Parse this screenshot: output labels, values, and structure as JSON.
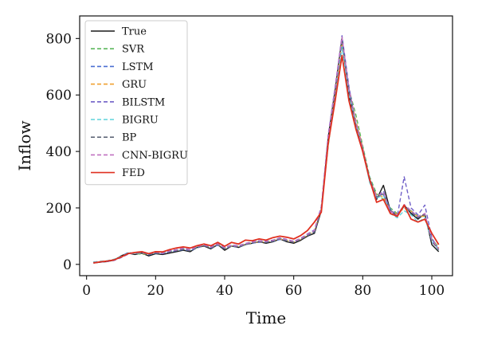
{
  "chart_data": {
    "type": "line",
    "xlabel": "Time",
    "ylabel": "Inflow",
    "xlim": [
      -2,
      106
    ],
    "ylim": [
      -40,
      880
    ],
    "xticks": [
      0,
      20,
      40,
      60,
      80,
      100
    ],
    "yticks": [
      0,
      200,
      400,
      600,
      800
    ],
    "legend_position": "top-left",
    "grid": false,
    "x": [
      2,
      4,
      6,
      8,
      10,
      12,
      14,
      16,
      18,
      20,
      22,
      24,
      26,
      28,
      30,
      32,
      34,
      36,
      38,
      40,
      42,
      44,
      46,
      48,
      50,
      52,
      54,
      56,
      58,
      60,
      62,
      64,
      66,
      68,
      70,
      72,
      74,
      76,
      78,
      80,
      82,
      84,
      86,
      88,
      90,
      92,
      94,
      96,
      98,
      100,
      102
    ],
    "series": [
      {
        "name": "True",
        "color": "#1a1a1a",
        "dash": "solid",
        "values": [
          5,
          8,
          10,
          15,
          30,
          40,
          35,
          40,
          30,
          38,
          35,
          40,
          45,
          50,
          45,
          60,
          65,
          55,
          70,
          50,
          65,
          60,
          70,
          75,
          80,
          75,
          80,
          90,
          80,
          75,
          85,
          100,
          110,
          190,
          450,
          620,
          800,
          600,
          480,
          400,
          300,
          230,
          280,
          190,
          170,
          210,
          180,
          160,
          180,
          70,
          45
        ]
      },
      {
        "name": "SVR",
        "color": "#5cb85c",
        "dash": "dashed",
        "values": [
          8,
          10,
          12,
          18,
          25,
          38,
          40,
          35,
          38,
          40,
          42,
          45,
          50,
          55,
          50,
          62,
          68,
          60,
          72,
          58,
          66,
          65,
          72,
          78,
          82,
          80,
          85,
          92,
          85,
          80,
          90,
          105,
          120,
          200,
          420,
          600,
          780,
          620,
          530,
          420,
          310,
          250,
          230,
          200,
          180,
          200,
          190,
          170,
          170,
          90,
          60
        ]
      },
      {
        "name": "LSTM",
        "color": "#4a6fd1",
        "dash": "dashed",
        "values": [
          6,
          9,
          11,
          16,
          28,
          42,
          38,
          42,
          34,
          40,
          38,
          44,
          48,
          52,
          48,
          58,
          66,
          58,
          68,
          55,
          64,
          62,
          70,
          76,
          78,
          78,
          82,
          88,
          84,
          78,
          88,
          102,
          115,
          195,
          440,
          610,
          790,
          610,
          500,
          410,
          305,
          240,
          250,
          195,
          175,
          205,
          185,
          165,
          175,
          80,
          55
        ]
      },
      {
        "name": "GRU",
        "color": "#f0a030",
        "dash": "dashed",
        "values": [
          7,
          10,
          12,
          17,
          26,
          40,
          40,
          38,
          36,
          42,
          40,
          46,
          50,
          54,
          50,
          60,
          67,
          60,
          70,
          57,
          65,
          64,
          71,
          77,
          80,
          79,
          84,
          90,
          85,
          79,
          89,
          103,
          118,
          198,
          430,
          605,
          785,
          615,
          510,
          415,
          300,
          245,
          240,
          190,
          178,
          200,
          188,
          168,
          172,
          85,
          58
        ]
      },
      {
        "name": "BILSTM",
        "color": "#7060c8",
        "dash": "dashed",
        "values": [
          6,
          8,
          10,
          14,
          24,
          36,
          42,
          44,
          38,
          44,
          40,
          48,
          52,
          58,
          52,
          64,
          70,
          62,
          74,
          60,
          68,
          66,
          74,
          80,
          84,
          82,
          86,
          94,
          88,
          82,
          92,
          108,
          122,
          205,
          460,
          630,
          810,
          630,
          490,
          400,
          295,
          235,
          260,
          185,
          170,
          310,
          200,
          175,
          210,
          95,
          50
        ]
      },
      {
        "name": "BIGRU",
        "color": "#5fd3dc",
        "dash": "dashed",
        "values": [
          8,
          11,
          13,
          18,
          28,
          40,
          38,
          40,
          36,
          40,
          42,
          46,
          50,
          56,
          50,
          62,
          68,
          60,
          72,
          58,
          66,
          64,
          72,
          78,
          82,
          80,
          84,
          92,
          86,
          80,
          90,
          104,
          118,
          200,
          435,
          600,
          770,
          600,
          490,
          405,
          290,
          235,
          245,
          180,
          165,
          190,
          175,
          150,
          165,
          85,
          50
        ]
      },
      {
        "name": "BP",
        "color": "#606878",
        "dash": "dashed",
        "values": [
          7,
          9,
          11,
          16,
          27,
          39,
          39,
          41,
          35,
          41,
          39,
          45,
          49,
          53,
          49,
          61,
          66,
          59,
          71,
          56,
          65,
          63,
          71,
          77,
          81,
          78,
          83,
          91,
          84,
          78,
          88,
          102,
          116,
          196,
          438,
          612,
          795,
          612,
          495,
          408,
          302,
          238,
          250,
          192,
          172,
          206,
          186,
          166,
          176,
          82,
          52
        ]
      },
      {
        "name": "CNN-BIGRU",
        "color": "#c070c0",
        "dash": "dashed",
        "values": [
          6,
          9,
          11,
          15,
          25,
          37,
          41,
          43,
          37,
          43,
          39,
          47,
          51,
          57,
          51,
          63,
          69,
          61,
          73,
          59,
          67,
          65,
          73,
          79,
          83,
          81,
          85,
          93,
          87,
          81,
          91,
          106,
          120,
          202,
          455,
          625,
          805,
          625,
          505,
          412,
          298,
          242,
          255,
          188,
          174,
          212,
          190,
          170,
          180,
          88,
          54
        ]
      },
      {
        "name": "FED",
        "color": "#e03020",
        "dash": "solid",
        "values": [
          5,
          9,
          12,
          16,
          26,
          38,
          42,
          45,
          38,
          45,
          44,
          52,
          58,
          62,
          58,
          66,
          72,
          66,
          78,
          64,
          78,
          72,
          86,
          84,
          90,
          86,
          95,
          100,
          96,
          90,
          102,
          120,
          150,
          185,
          430,
          580,
          740,
          580,
          480,
          400,
          300,
          220,
          230,
          180,
          170,
          210,
          160,
          150,
          160,
          110,
          70
        ]
      }
    ]
  }
}
